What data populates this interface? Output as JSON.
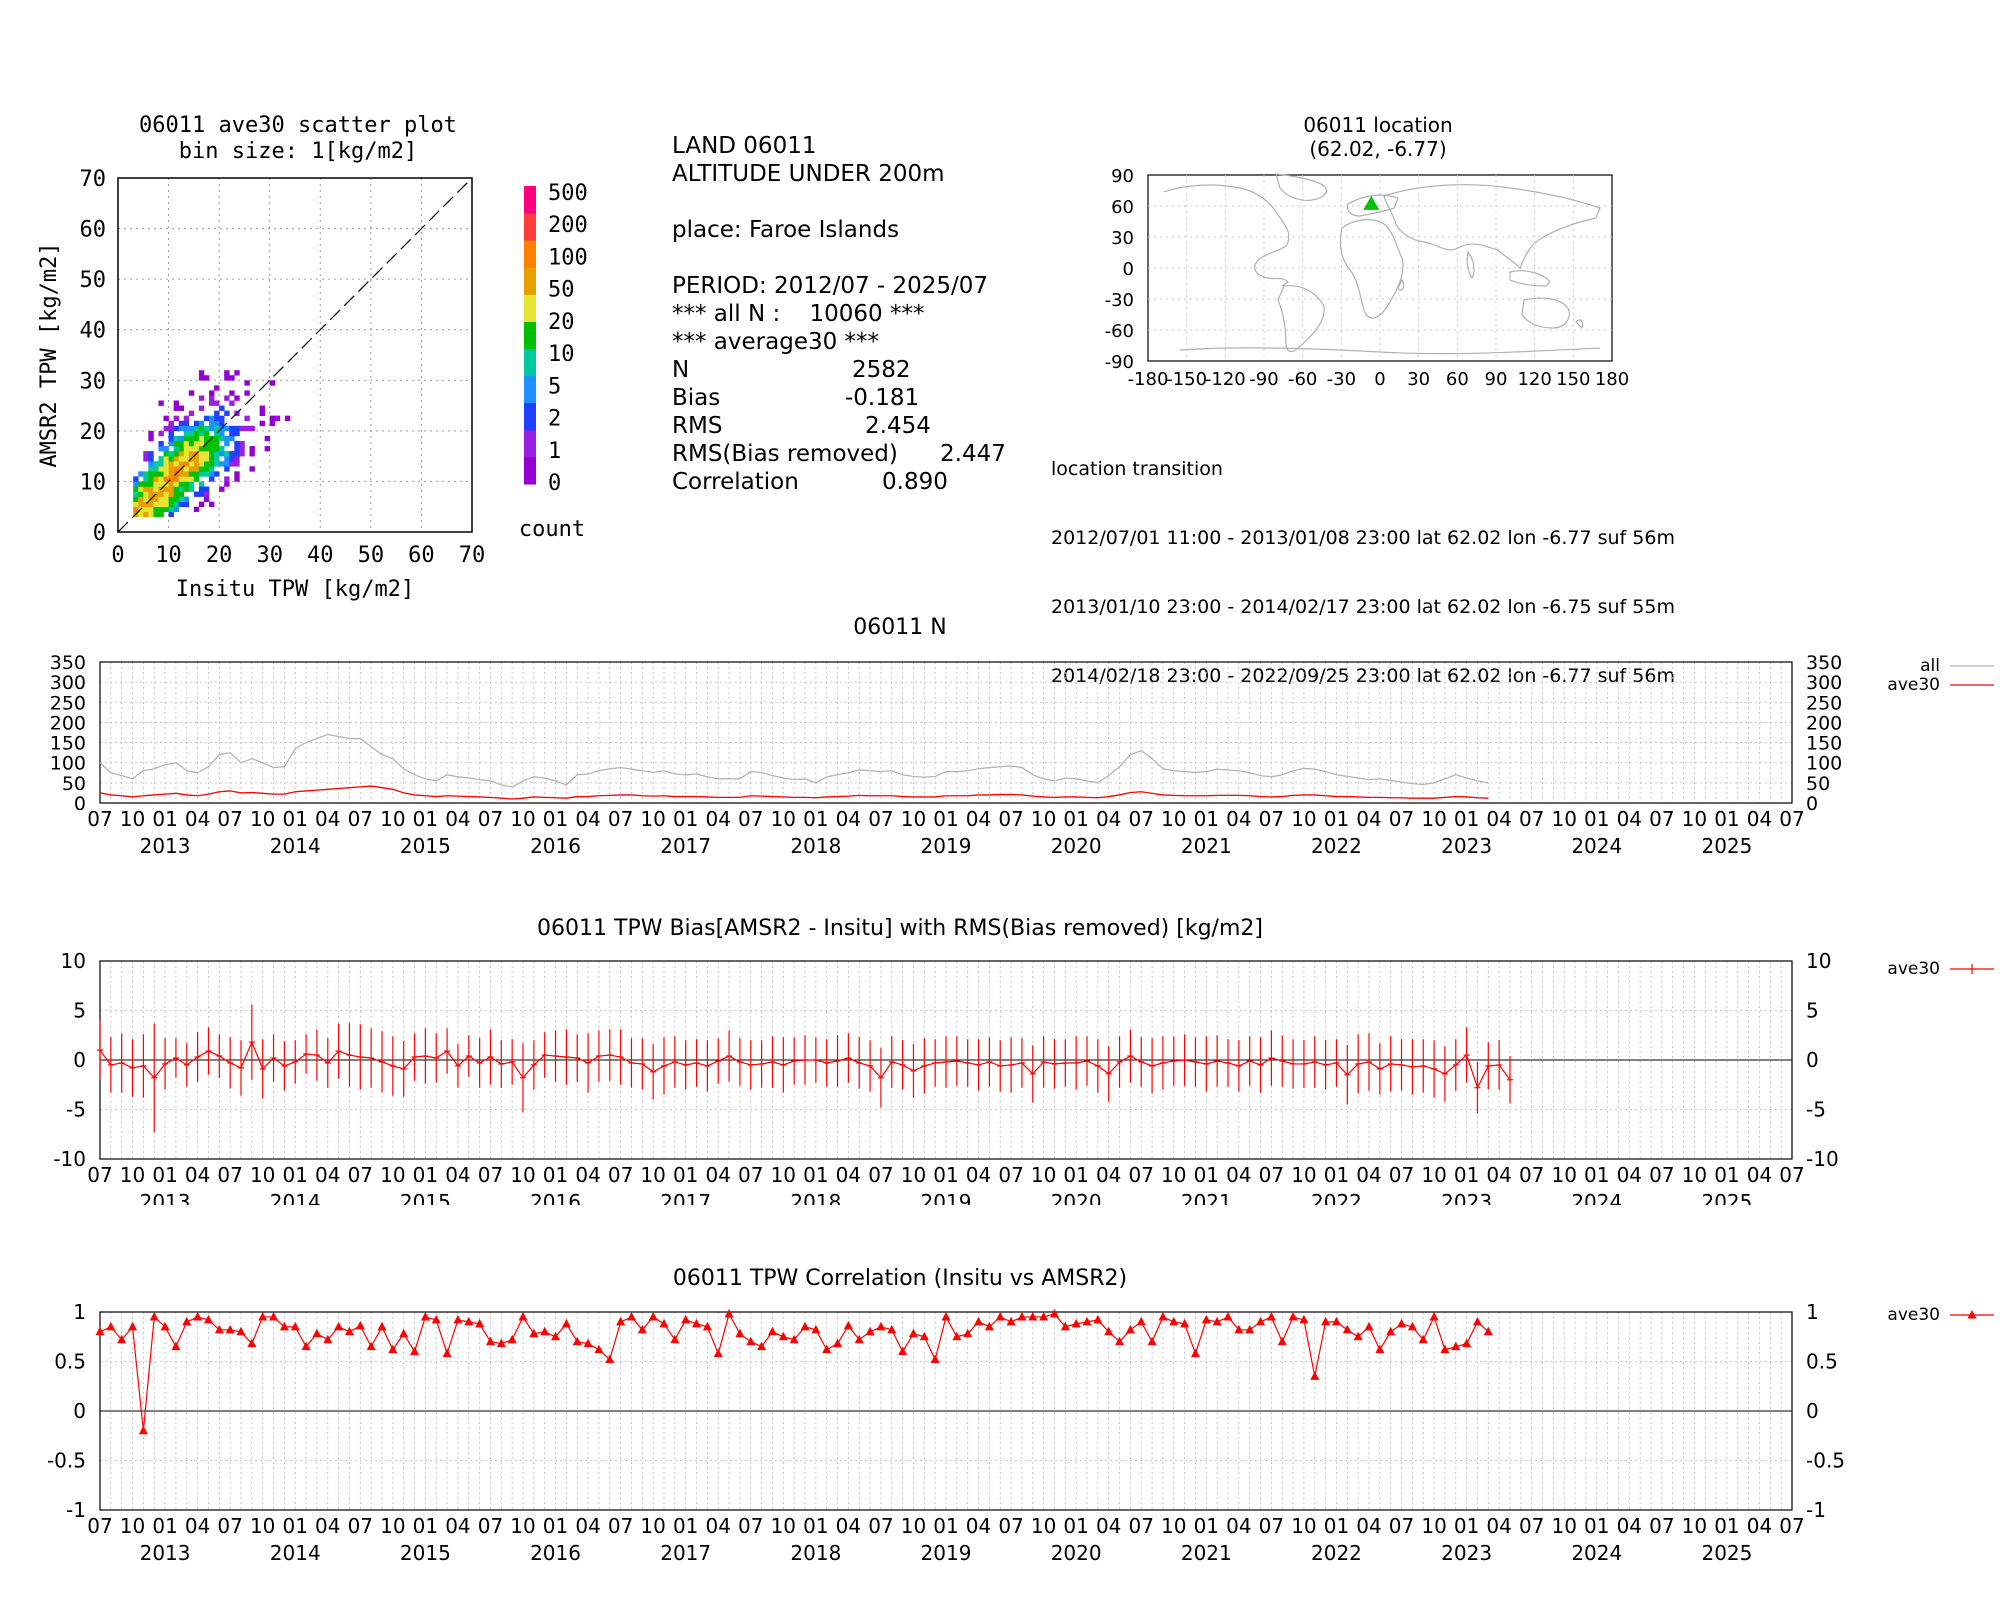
{
  "station": "06011",
  "info": {
    "line1": "LAND 06011",
    "line2": "ALTITUDE UNDER 200m",
    "place": "place: Faroe Islands",
    "period": "PERIOD: 2012/07 - 2025/07",
    "all_n": "*** all N :    10060 ***",
    "avg_header": "*** average30 ***",
    "stats": [
      {
        "label": "N",
        "value": "2582"
      },
      {
        "label": "Bias",
        "value": "-0.181"
      },
      {
        "label": "RMS",
        "value": "2.454"
      },
      {
        "label": "RMS(Bias removed)",
        "value": "2.447"
      },
      {
        "label": "Correlation",
        "value": "0.890"
      }
    ]
  },
  "location": {
    "title": "06011 location",
    "coords": "(62.02, -6.77)",
    "transition_header": "location transition",
    "transitions": [
      "2012/07/01 11:00 - 2013/01/08 23:00 lat 62.02 lon -6.77 suf 56m",
      "2013/01/10 23:00 - 2014/02/17 23:00 lat 62.02 lon -6.75 suf 55m",
      "2014/02/18 23:00 - 2022/09/25 23:00 lat 62.02 lon -6.77 suf 56m"
    ]
  },
  "colors": {
    "all": "#b4b4b4",
    "ave30": "#ff0000",
    "marker": "#00c000",
    "bins": [
      "#9400d3",
      "#9b1fe0",
      "#2040ff",
      "#1e90ff",
      "#00c8a0",
      "#00c000",
      "#e6e632",
      "#e6a000",
      "#ff7f00",
      "#ff3c3c",
      "#ff0080"
    ]
  },
  "chart_data": [
    {
      "type": "heatmap",
      "title": "06011 ave30 scatter plot",
      "subtitle": "bin size: 1[kg/m2]",
      "xlabel": "Insitu TPW [kg/m2]",
      "ylabel": "AMSR2 TPW [kg/m2]",
      "xlim": [
        0,
        70
      ],
      "ylim": [
        0,
        70
      ],
      "xticks": [
        "0",
        "10",
        "20",
        "30",
        "40",
        "50",
        "60",
        "70"
      ],
      "yticks": [
        "0",
        "10",
        "20",
        "30",
        "40",
        "50",
        "60",
        "70"
      ],
      "colorbar_label": "count",
      "colorbar_ticks": [
        "0",
        "1",
        "2",
        "5",
        "10",
        "20",
        "50",
        "100",
        "200",
        "500"
      ],
      "diagonal": true,
      "density": {
        "center_x": [
          3,
          20
        ],
        "spread": 3.2,
        "max_bin_count": 60,
        "x_range": [
          3,
          34
        ],
        "y_range": [
          3,
          33
        ]
      }
    },
    {
      "type": "map",
      "title": "06011 location",
      "xticks": [
        "-180",
        "-150",
        "-120",
        "-90",
        "-60",
        "-30",
        "0",
        "30",
        "60",
        "90",
        "120",
        "150",
        "180"
      ],
      "yticks": [
        "90",
        "60",
        "30",
        "0",
        "-30",
        "-60",
        "-90"
      ],
      "xlim": [
        -180,
        180
      ],
      "ylim": [
        -90,
        90
      ],
      "marker": {
        "lon": -6.77,
        "lat": 62.02
      }
    },
    {
      "type": "line",
      "title": "06011 N",
      "ylim": [
        0,
        350
      ],
      "yticks": [
        "0",
        "50",
        "100",
        "150",
        "200",
        "250",
        "300",
        "350"
      ],
      "x_start": "2012/07",
      "x_end": "2025/07",
      "month_ticks": [
        "07",
        "10",
        "01",
        "04",
        "07",
        "10",
        "01",
        "04",
        "07",
        "10",
        "01",
        "04",
        "07",
        "10",
        "01",
        "04",
        "07",
        "10",
        "01",
        "04",
        "07",
        "10",
        "01",
        "04",
        "07",
        "10",
        "01",
        "04",
        "07",
        "10",
        "01",
        "04",
        "07",
        "10",
        "01",
        "04",
        "07",
        "10",
        "01",
        "04",
        "07",
        "10",
        "01",
        "04",
        "07",
        "10",
        "01",
        "04",
        "07",
        "10",
        "01",
        "04",
        "07"
      ],
      "year_labels": [
        "2013",
        "2014",
        "2015",
        "2016",
        "2017",
        "2018",
        "2019",
        "2020",
        "2021",
        "2022",
        "2023",
        "2024",
        "2025"
      ],
      "series": [
        {
          "name": "all",
          "values": [
            100,
            75,
            68,
            60,
            80,
            85,
            95,
            100,
            80,
            75,
            90,
            120,
            125,
            100,
            110,
            100,
            88,
            90,
            135,
            150,
            160,
            170,
            165,
            160,
            160,
            140,
            120,
            110,
            85,
            70,
            60,
            55,
            70,
            65,
            62,
            58,
            55,
            45,
            40,
            55,
            65,
            62,
            55,
            45,
            70,
            72,
            80,
            85,
            88,
            84,
            80,
            76,
            80,
            72,
            70,
            72,
            65,
            60,
            60,
            60,
            78,
            76,
            68,
            62,
            58,
            60,
            50,
            65,
            70,
            75,
            82,
            80,
            78,
            80,
            70,
            66,
            64,
            66,
            78,
            78,
            80,
            85,
            88,
            90,
            92,
            88,
            70,
            60,
            55,
            62,
            60,
            55,
            50,
            68,
            90,
            120,
            130,
            110,
            85,
            80,
            78,
            76,
            78,
            84,
            82,
            80,
            75,
            68,
            65,
            70,
            80,
            86,
            84,
            78,
            70,
            66,
            62,
            58,
            60,
            56,
            52,
            48,
            46,
            50,
            60,
            70,
            62,
            55,
            50
          ]
        },
        {
          "name": "ave30",
          "values": [
            25,
            20,
            18,
            15,
            18,
            20,
            22,
            24,
            20,
            18,
            22,
            28,
            30,
            25,
            26,
            24,
            22,
            22,
            28,
            30,
            32,
            34,
            36,
            38,
            40,
            42,
            38,
            34,
            25,
            20,
            18,
            16,
            18,
            17,
            16,
            15,
            14,
            12,
            10,
            12,
            15,
            14,
            13,
            12,
            16,
            16,
            18,
            19,
            20,
            20,
            18,
            17,
            18,
            16,
            16,
            16,
            15,
            14,
            14,
            14,
            18,
            17,
            16,
            15,
            14,
            14,
            13,
            15,
            16,
            17,
            19,
            18,
            18,
            18,
            16,
            15,
            15,
            15,
            18,
            18,
            18,
            20,
            20,
            21,
            21,
            20,
            17,
            15,
            14,
            15,
            15,
            14,
            13,
            16,
            20,
            26,
            28,
            24,
            20,
            19,
            18,
            18,
            18,
            19,
            19,
            19,
            18,
            16,
            15,
            16,
            19,
            20,
            20,
            18,
            16,
            16,
            15,
            14,
            14,
            13,
            13,
            12,
            12,
            12,
            14,
            16,
            15,
            13,
            12
          ]
        }
      ]
    },
    {
      "type": "line",
      "title": "06011 TPW Bias[AMSR2 - Insitu] with RMS(Bias removed) [kg/m2]",
      "ylim": [
        -10,
        10
      ],
      "yticks": [
        "-10",
        "-5",
        "0",
        "5",
        "10"
      ],
      "series": [
        {
          "name": "ave30",
          "values": [
            1.0,
            -0.5,
            -0.3,
            -0.8,
            -0.6,
            -1.8,
            -0.4,
            0.2,
            -0.5,
            0.3,
            0.9,
            0.4,
            -0.3,
            -0.8,
            1.8,
            -0.9,
            0.2,
            -0.6,
            -0.2,
            0.6,
            0.5,
            -0.3,
            0.9,
            0.5,
            0.3,
            0.2,
            -0.2,
            -0.6,
            -0.9,
            0.3,
            0.4,
            0.2,
            0.9,
            -0.6,
            0.4,
            -0.3,
            0.3,
            -0.4,
            -0.2,
            -1.8,
            -0.5,
            0.5,
            0.4,
            0.3,
            0.2,
            -0.3,
            0.4,
            0.5,
            0.3,
            -0.3,
            -0.4,
            -1.2,
            -0.6,
            -0.2,
            -0.5,
            -0.3,
            -0.6,
            -0.1,
            0.4,
            -0.2,
            -0.5,
            -0.4,
            -0.2,
            -0.5,
            -0.1,
            0.0,
            0.0,
            -0.3,
            -0.1,
            0.2,
            -0.3,
            -0.6,
            -1.8,
            -0.2,
            -0.5,
            -1.1,
            -0.6,
            -0.3,
            -0.2,
            -0.1,
            -0.3,
            -0.5,
            -0.2,
            -0.6,
            -0.5,
            -0.3,
            -1.4,
            -0.2,
            -0.4,
            -0.3,
            -0.3,
            -0.1,
            -0.6,
            -1.4,
            -0.2,
            0.4,
            -0.2,
            -0.6,
            -0.3,
            -0.1,
            0.0,
            -0.2,
            -0.4,
            -0.1,
            -0.3,
            -0.6,
            -0.1,
            -0.5,
            0.2,
            -0.1,
            -0.4,
            -0.4,
            -0.2,
            -0.5,
            -0.3,
            -1.5,
            -0.4,
            -0.2,
            -0.9,
            -0.4,
            -0.5,
            -0.7,
            -0.6,
            -0.9,
            -1.4,
            -0.5,
            0.5,
            -2.8,
            -0.6,
            -0.5,
            -2.0
          ]
        }
      ],
      "rms": [
        3.0,
        2.8,
        3.0,
        2.9,
        3.2,
        5.5,
        2.6,
        2.0,
        2.2,
        2.5,
        2.4,
        2.2,
        2.6,
        2.8,
        3.8,
        3.0,
        2.4,
        2.5,
        2.2,
        2.0,
        2.6,
        2.5,
        2.8,
        3.2,
        3.3,
        3.0,
        3.1,
        3.0,
        2.8,
        2.4,
        2.8,
        2.5,
        2.3,
        2.2,
        2.1,
        2.5,
        2.8,
        2.4,
        2.3,
        3.5,
        2.5,
        2.3,
        2.6,
        2.8,
        2.4,
        3.0,
        2.6,
        2.6,
        2.8,
        2.5,
        2.6,
        2.8,
        2.9,
        2.6,
        2.5,
        2.4,
        2.6,
        2.3,
        2.6,
        2.4,
        2.5,
        2.4,
        2.6,
        2.8,
        2.4,
        2.5,
        2.3,
        2.4,
        2.6,
        2.5,
        2.6,
        2.6,
        3.0,
        2.6,
        2.5,
        2.7,
        2.8,
        2.4,
        2.6,
        2.5,
        2.4,
        2.6,
        2.5,
        2.6,
        2.8,
        2.5,
        2.9,
        2.6,
        2.5,
        2.4,
        2.7,
        2.5,
        2.7,
        2.8,
        2.6,
        2.7,
        2.5,
        2.8,
        2.7,
        2.5,
        2.6,
        2.5,
        2.8,
        2.6,
        2.4,
        2.6,
        2.5,
        2.8,
        2.8,
        2.6,
        2.5,
        2.4,
        2.6,
        2.5,
        2.4,
        3.0,
        3.0,
        2.9,
        2.6,
        2.8,
        2.6,
        2.8,
        2.7,
        2.9,
        2.8,
        2.6,
        2.8,
        2.6,
        2.4,
        2.5,
        2.4
      ]
    },
    {
      "type": "line",
      "title": "06011 TPW Correlation (Insitu vs AMSR2)",
      "ylim": [
        -1,
        1
      ],
      "yticks": [
        "-1",
        "-0.5",
        "0",
        "0.5",
        "1"
      ],
      "series": [
        {
          "name": "ave30",
          "values": [
            0.8,
            0.85,
            0.72,
            0.85,
            -0.2,
            0.95,
            0.85,
            0.65,
            0.9,
            0.95,
            0.92,
            0.82,
            0.82,
            0.8,
            0.68,
            0.95,
            0.95,
            0.85,
            0.85,
            0.65,
            0.78,
            0.72,
            0.85,
            0.8,
            0.86,
            0.65,
            0.85,
            0.62,
            0.78,
            0.6,
            0.95,
            0.92,
            0.58,
            0.92,
            0.9,
            0.88,
            0.7,
            0.68,
            0.72,
            0.95,
            0.78,
            0.8,
            0.75,
            0.88,
            0.7,
            0.68,
            0.62,
            0.52,
            0.9,
            0.95,
            0.82,
            0.95,
            0.88,
            0.72,
            0.92,
            0.88,
            0.85,
            0.58,
            0.98,
            0.78,
            0.7,
            0.65,
            0.8,
            0.75,
            0.72,
            0.85,
            0.82,
            0.62,
            0.68,
            0.86,
            0.72,
            0.8,
            0.85,
            0.82,
            0.6,
            0.78,
            0.75,
            0.52,
            0.95,
            0.75,
            0.78,
            0.9,
            0.85,
            0.95,
            0.9,
            0.95,
            0.95,
            0.95,
            0.98,
            0.85,
            0.88,
            0.9,
            0.92,
            0.8,
            0.7,
            0.82,
            0.9,
            0.7,
            0.95,
            0.9,
            0.88,
            0.58,
            0.92,
            0.9,
            0.95,
            0.82,
            0.82,
            0.9,
            0.95,
            0.7,
            0.95,
            0.92,
            0.35,
            0.9,
            0.9,
            0.82,
            0.75,
            0.85,
            0.62,
            0.8,
            0.88,
            0.85,
            0.72,
            0.95,
            0.62,
            0.65,
            0.68,
            0.9,
            0.8
          ]
        }
      ]
    }
  ]
}
